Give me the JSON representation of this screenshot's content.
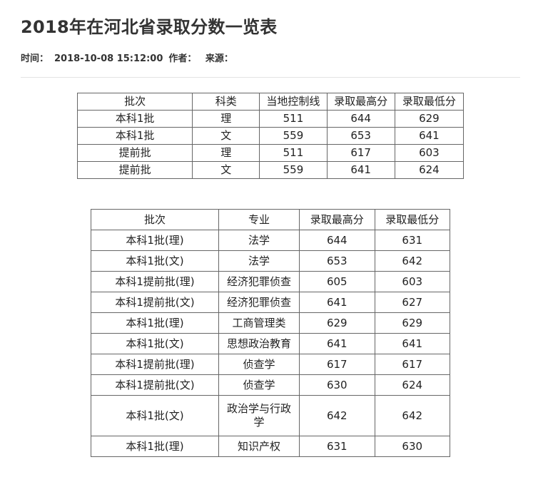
{
  "article": {
    "title": "2018年在河北省录取分数一览表",
    "time_label": "时间：",
    "time_value": "2018-10-08 15:12:00",
    "author_label": "作者：",
    "source_label": "来源："
  },
  "table1": {
    "headers": [
      "批次",
      "科类",
      "当地控制线",
      "录取最高分",
      "录取最低分"
    ],
    "rows": [
      [
        "本科1批",
        "理",
        "511",
        "644",
        "629"
      ],
      [
        "本科1批",
        "文",
        "559",
        "653",
        "641"
      ],
      [
        "提前批",
        "理",
        "511",
        "617",
        "603"
      ],
      [
        "提前批",
        "文",
        "559",
        "641",
        "624"
      ]
    ]
  },
  "table2": {
    "headers": [
      "批次",
      "专业",
      "录取最高分",
      "录取最低分"
    ],
    "rows": [
      [
        "本科1批(理)",
        "法学",
        "644",
        "631"
      ],
      [
        "本科1批(文)",
        "法学",
        "653",
        "642"
      ],
      [
        "本科1提前批(理)",
        "经济犯罪侦查",
        "605",
        "603"
      ],
      [
        "本科1提前批(文)",
        "经济犯罪侦查",
        "641",
        "627"
      ],
      [
        "本科1批(理)",
        "工商管理类",
        "629",
        "629"
      ],
      [
        "本科1批(文)",
        "思想政治教育",
        "641",
        "641"
      ],
      [
        "本科1提前批(理)",
        "侦查学",
        "617",
        "617"
      ],
      [
        "本科1提前批(文)",
        "侦查学",
        "630",
        "624"
      ],
      [
        "本科1批(文)",
        "政治学与行政学",
        "642",
        "642"
      ],
      [
        "本科1批(理)",
        "知识产权",
        "631",
        "630"
      ]
    ]
  }
}
